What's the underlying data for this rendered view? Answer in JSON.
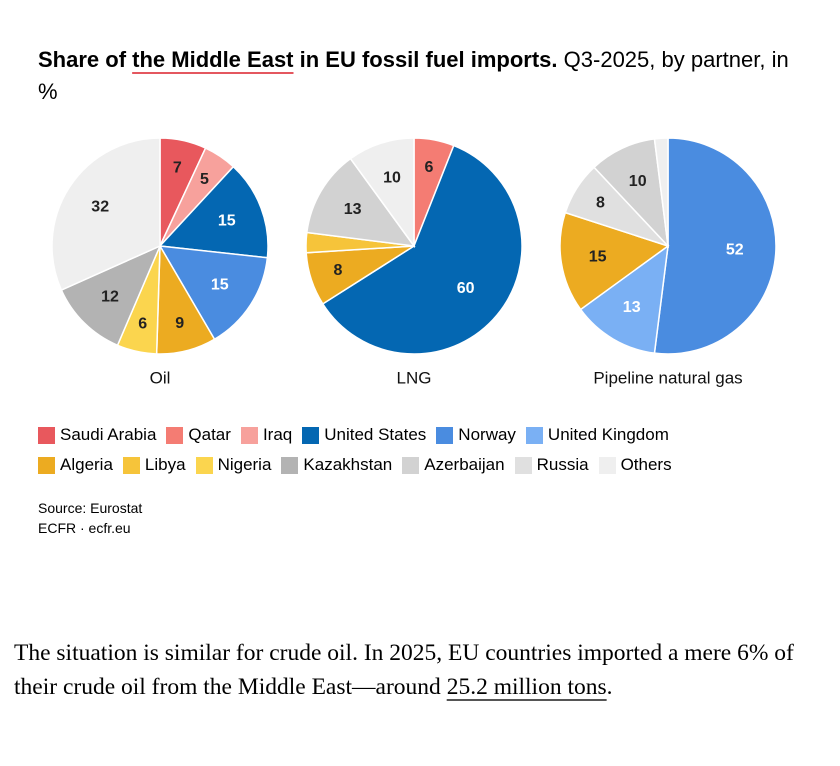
{
  "title": {
    "bold_pre": "Share of ",
    "bold_highlight": "the Middle East",
    "bold_post": " in EU fossil fuel imports.",
    "normal": " Q3-2025, by partner, in %"
  },
  "colors": {
    "Saudi Arabia": "#e8585d",
    "Qatar": "#f47c73",
    "Iraq": "#f7a19c",
    "United States": "#0467b2",
    "Norway": "#4a8ce0",
    "United Kingdom": "#7ab0f4",
    "Algeria": "#ecab21",
    "Libya": "#f6c43a",
    "Nigeria": "#fbd54e",
    "Kazakhstan": "#b3b3b3",
    "Azerbaijan": "#d2d2d2",
    "Russia": "#e0e0e0",
    "Others": "#efefef"
  },
  "chart_data": [
    {
      "type": "pie",
      "title": "Oil",
      "slices": [
        {
          "label": "Saudi Arabia",
          "value": 7,
          "shown": "7"
        },
        {
          "label": "Iraq",
          "value": 5,
          "shown": "5"
        },
        {
          "label": "United States",
          "value": 15,
          "shown": "15"
        },
        {
          "label": "Norway",
          "value": 15,
          "shown": "15"
        },
        {
          "label": "Algeria",
          "value": 9,
          "shown": "9"
        },
        {
          "label": "Nigeria",
          "value": 6,
          "shown": "6"
        },
        {
          "label": "Kazakhstan",
          "value": 12,
          "shown": "12"
        },
        {
          "label": "Others",
          "value": 32,
          "shown": "32"
        }
      ]
    },
    {
      "type": "pie",
      "title": "LNG",
      "slices": [
        {
          "label": "Qatar",
          "value": 6,
          "shown": "6"
        },
        {
          "label": "United States",
          "value": 60,
          "shown": "60"
        },
        {
          "label": "Algeria",
          "value": 8,
          "shown": "8"
        },
        {
          "label": "Libya",
          "value": 3,
          "shown": ""
        },
        {
          "label": "Azerbaijan",
          "value": 13,
          "shown": "13"
        },
        {
          "label": "Others",
          "value": 10,
          "shown": "10"
        }
      ]
    },
    {
      "type": "pie",
      "title": "Pipeline natural gas",
      "slices": [
        {
          "label": "Norway",
          "value": 52,
          "shown": "52"
        },
        {
          "label": "United Kingdom",
          "value": 13,
          "shown": "13"
        },
        {
          "label": "Algeria",
          "value": 15,
          "shown": "15"
        },
        {
          "label": "Russia",
          "value": 8,
          "shown": "8"
        },
        {
          "label": "Azerbaijan",
          "value": 10,
          "shown": "10"
        },
        {
          "label": "Others",
          "value": 2,
          "shown": ""
        }
      ]
    }
  ],
  "legend": [
    [
      "Saudi Arabia",
      "Qatar",
      "Iraq",
      "United States",
      "Norway",
      "United Kingdom"
    ],
    [
      "Algeria",
      "Libya",
      "Nigeria",
      "Kazakhstan",
      "Azerbaijan",
      "Russia",
      "Others"
    ]
  ],
  "source": {
    "line1": "Source: Eurostat",
    "line2": "ECFR · ecfr.eu"
  },
  "article": {
    "text": "The situation is similar for crude oil. In 2025, EU countries imported a mere 6% of their crude oil from the Middle East—around ",
    "link": "25.2 million tons",
    "end": "."
  }
}
